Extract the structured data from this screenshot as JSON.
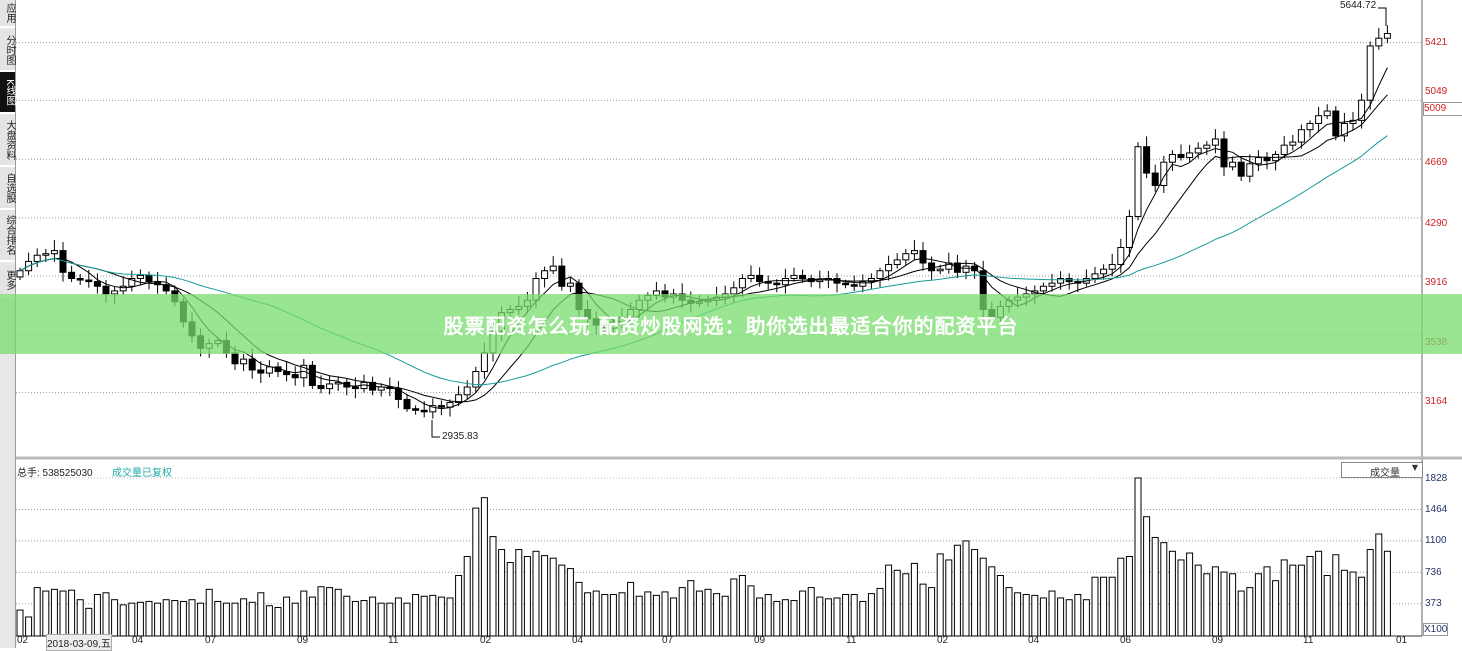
{
  "sidebar": {
    "items": [
      {
        "label": "应用",
        "active": false
      },
      {
        "label": "分时图",
        "active": false
      },
      {
        "label": "K线图",
        "active": true
      },
      {
        "label": "大盘资料",
        "active": false
      },
      {
        "label": "自选股",
        "active": false
      },
      {
        "label": "综合排名",
        "active": false
      },
      {
        "label": "更多",
        "active": false
      }
    ]
  },
  "price_axis": {
    "labels": [
      "5421",
      "5049",
      "5009",
      "4669",
      "4290",
      "3916",
      "3538",
      "3164"
    ],
    "color": "#cc2222"
  },
  "price_annotations": {
    "high": "5644.72",
    "low": "2935.83"
  },
  "volume_panel": {
    "total_label": "总手: 538525030",
    "note": "成交量已复权",
    "selector": "成交量",
    "axis_labels": [
      "1828",
      "1464",
      "1100",
      "736",
      "373"
    ],
    "unit": "X100"
  },
  "x_axis": {
    "labels": [
      "02",
      "2018-03-09,五",
      "04",
      "07",
      "09",
      "11",
      "02",
      "04",
      "07",
      "09",
      "11",
      "02",
      "04",
      "06",
      "09",
      "11",
      "01"
    ]
  },
  "banner": {
    "text": "股票配资怎么玩 配资炒股网选：助你选出最适合你的配资平台"
  },
  "colors": {
    "up": "#ffffff",
    "down": "#000000",
    "ma_short": "#000000",
    "ma_long": "#1a9a9a",
    "grid": "#999999",
    "volume_axis": "#223366",
    "banner": "#78dc6e"
  },
  "chart_data": {
    "type": "candlestick",
    "closes": [
      3950,
      4010,
      4050,
      4060,
      4080,
      3940,
      3900,
      3890,
      3880,
      3850,
      3800,
      3820,
      3850,
      3900,
      3920,
      3880,
      3860,
      3820,
      3750,
      3620,
      3530,
      3450,
      3480,
      3500,
      3420,
      3350,
      3380,
      3310,
      3290,
      3330,
      3300,
      3280,
      3260,
      3340,
      3210,
      3190,
      3220,
      3230,
      3200,
      3190,
      3230,
      3180,
      3200,
      3190,
      3120,
      3060,
      3050,
      3040,
      3080,
      3070,
      3100,
      3150,
      3200,
      3300,
      3420,
      3560,
      3680,
      3700,
      3720,
      3760,
      3900,
      3950,
      3980,
      3850,
      3870,
      3700,
      3640,
      3600,
      3580,
      3620,
      3650,
      3700,
      3760,
      3790,
      3820,
      3780,
      3800,
      3760,
      3740,
      3750,
      3760,
      3780,
      3800,
      3840,
      3900,
      3920,
      3880,
      3870,
      3860,
      3900,
      3920,
      3900,
      3880,
      3890,
      3900,
      3870,
      3860,
      3850,
      3880,
      3900,
      3950,
      3990,
      4020,
      4060,
      4080,
      4000,
      3950,
      3960,
      4000,
      3940,
      3980,
      3950,
      3700,
      3650,
      3720,
      3760,
      3780,
      3800,
      3820,
      3850,
      3870,
      3900,
      3880,
      3870,
      3900,
      3930,
      3960,
      3990,
      4100,
      4300,
      4750,
      4580,
      4500,
      4650,
      4700,
      4680,
      4710,
      4740,
      4760,
      4800,
      4620,
      4650,
      4560,
      4640,
      4680,
      4660,
      4700,
      4760,
      4780,
      4860,
      4900,
      4950,
      4980,
      4820,
      4900,
      4920,
      5050,
      5400,
      5450,
      5480
    ],
    "volumes": [
      300,
      220,
      560,
      520,
      540,
      520,
      530,
      420,
      320,
      480,
      500,
      420,
      360,
      380,
      390,
      400,
      380,
      420,
      410,
      400,
      420,
      380,
      540,
      400,
      380,
      380,
      430,
      390,
      500,
      350,
      330,
      450,
      380,
      520,
      450,
      570,
      560,
      540,
      460,
      400,
      410,
      450,
      380,
      380,
      440,
      380,
      480,
      460,
      470,
      450,
      440,
      700,
      920,
      1480,
      1600,
      1150,
      1000,
      850,
      1000,
      920,
      980,
      930,
      900,
      820,
      780,
      620,
      500,
      520,
      480,
      480,
      500,
      620,
      460,
      510,
      470,
      510,
      440,
      560,
      640,
      520,
      540,
      490,
      460,
      660,
      700,
      580,
      440,
      480,
      400,
      420,
      410,
      520,
      560,
      450,
      430,
      440,
      480,
      480,
      400,
      490,
      550,
      820,
      760,
      720,
      840,
      600,
      560,
      950,
      880,
      1050,
      1100,
      1000,
      900,
      800,
      700,
      560,
      500,
      480,
      470,
      440,
      520,
      440,
      420,
      480,
      420,
      680,
      680,
      680,
      900,
      920,
      1828,
      1380,
      1140,
      1080,
      980,
      880,
      960,
      820,
      720,
      800,
      740,
      720,
      520,
      560,
      720,
      800,
      640,
      880,
      820,
      820,
      920,
      980,
      700,
      940,
      760,
      740,
      680,
      1000,
      1180,
      980
    ],
    "price_range": [
      2935.83,
      5644.72
    ],
    "volume_range": [
      0,
      1828
    ],
    "grid": true
  }
}
